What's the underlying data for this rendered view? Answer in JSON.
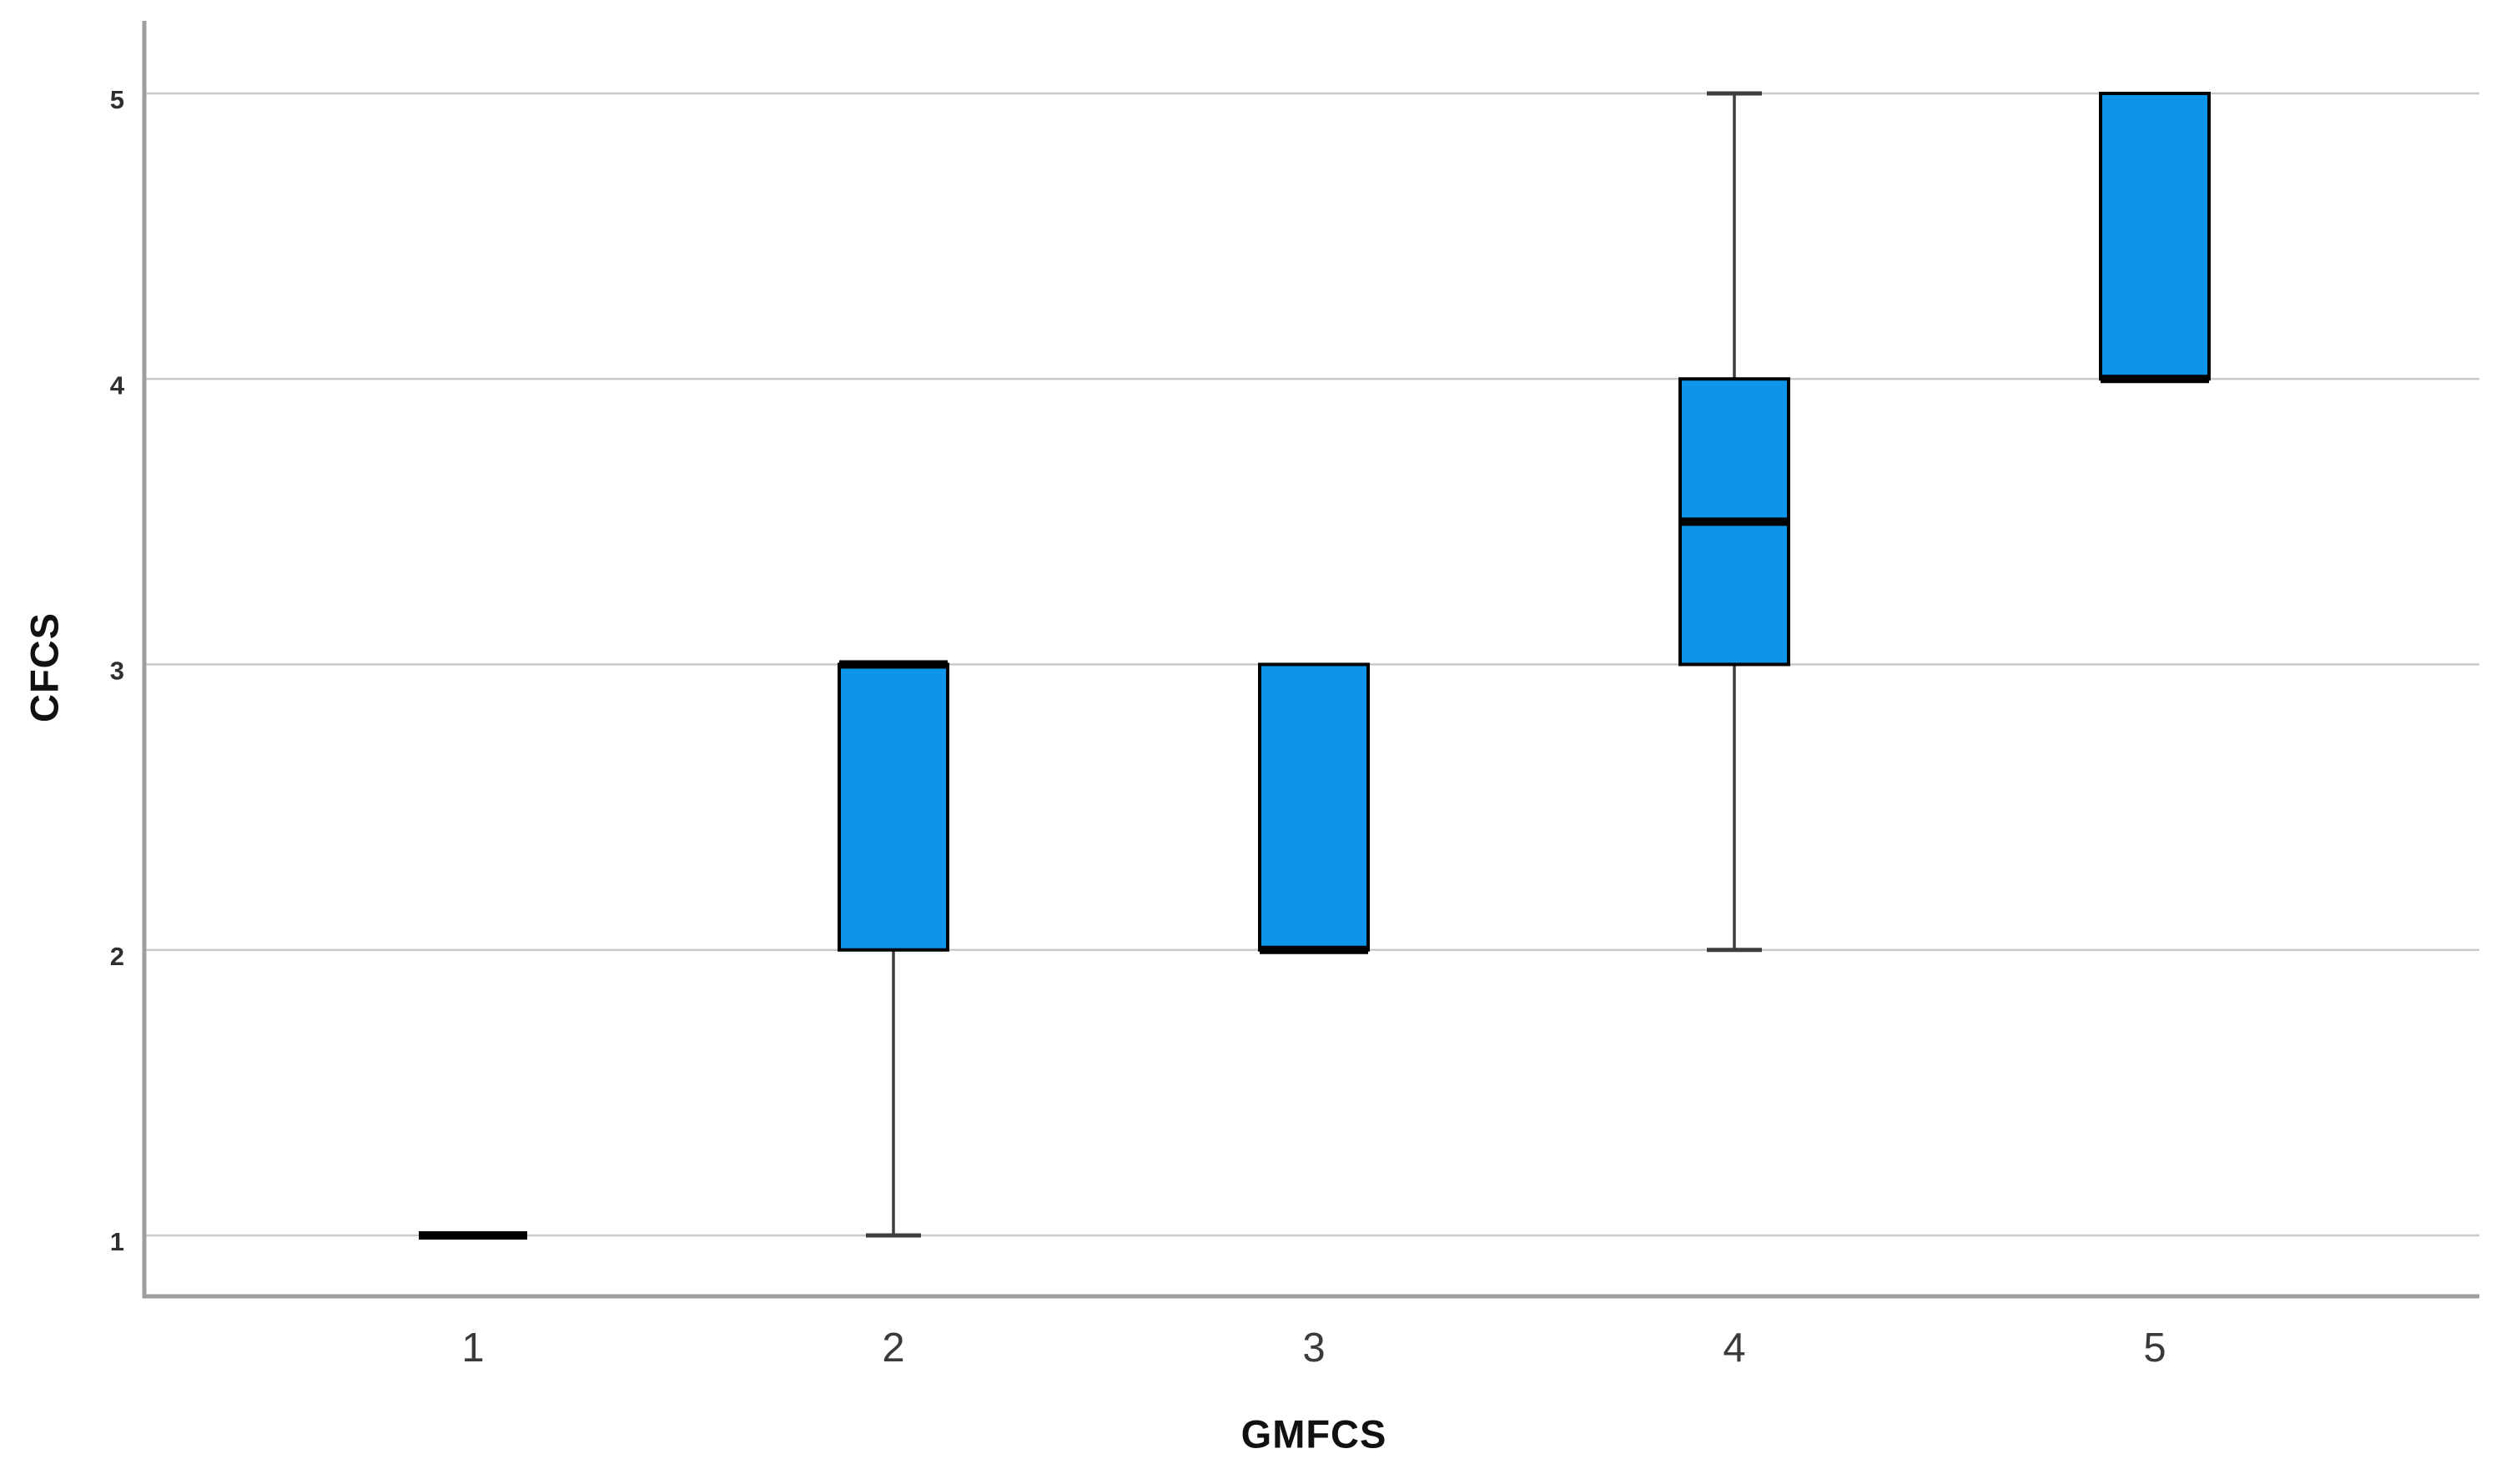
{
  "chart_data": {
    "type": "boxplot",
    "title": "",
    "xlabel": "GMFCS",
    "ylabel": "CFCS",
    "categories": [
      "1",
      "2",
      "3",
      "4",
      "5"
    ],
    "y_ticks": [
      1,
      2,
      3,
      4,
      5
    ],
    "ylim": [
      0.79,
      5.26
    ],
    "grid": "horizontal gridlines at integer values, no top/right frame",
    "legend": "none",
    "boxes": [
      {
        "category": "1",
        "whisker_low": 1,
        "q1": 1,
        "median": 1,
        "q3": 1,
        "whisker_high": 1
      },
      {
        "category": "2",
        "whisker_low": 1,
        "q1": 2,
        "median": 3,
        "q3": 3,
        "whisker_high": 3
      },
      {
        "category": "3",
        "whisker_low": 2,
        "q1": 2,
        "median": 2,
        "q3": 3,
        "whisker_high": 3
      },
      {
        "category": "4",
        "whisker_low": 2,
        "q1": 3,
        "median": 3.5,
        "q3": 4,
        "whisker_high": 5
      },
      {
        "category": "5",
        "whisker_low": 4,
        "q1": 4,
        "median": 4,
        "q3": 5,
        "whisker_high": 5
      }
    ],
    "colors": {
      "box_fill": "#0c95e9",
      "box_border": "#000000",
      "median_line": "#000000",
      "whisker": "#3d3d3d",
      "gridline": "#c9c9c9",
      "axis_line": "#9e9e9e",
      "y_tick_label": "#2f2f2f",
      "x_tick_label": "#3a3a3a",
      "axis_title": "#111111",
      "background": "#ffffff"
    }
  }
}
